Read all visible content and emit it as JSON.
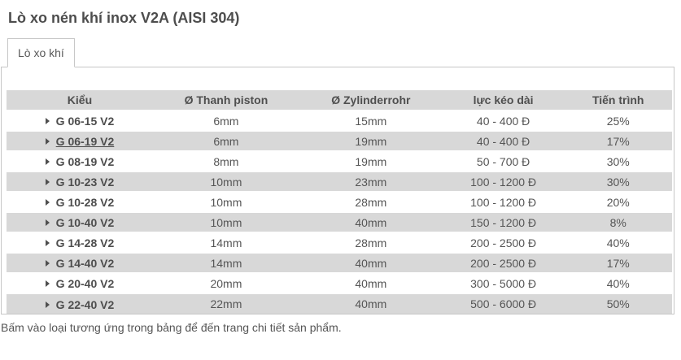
{
  "title": "Lò xo nén khí inox V2A (AISI 304)",
  "tabs": [
    {
      "label": "Lò xo khí",
      "active": true
    }
  ],
  "table": {
    "headers": [
      "Kiểu",
      "Ø Thanh piston",
      "Ø Zylinderrohr",
      "lực kéo dài",
      "Tiến trình"
    ],
    "rows": [
      {
        "model": "G 06-15 V2",
        "piston": "6mm",
        "cylinder": "15mm",
        "force": "40 - 400 Đ",
        "stroke": "25%",
        "underlined": false
      },
      {
        "model": "G 06-19 V2",
        "piston": "6mm",
        "cylinder": "19mm",
        "force": "40 - 400 Đ",
        "stroke": "17%",
        "underlined": true
      },
      {
        "model": "G 08-19 V2",
        "piston": "8mm",
        "cylinder": "19mm",
        "force": "50 - 700 Đ",
        "stroke": "30%",
        "underlined": false
      },
      {
        "model": "G 10-23 V2",
        "piston": "10mm",
        "cylinder": "23mm",
        "force": "100 - 1200 Đ",
        "stroke": "30%",
        "underlined": false
      },
      {
        "model": "G 10-28 V2",
        "piston": "10mm",
        "cylinder": "28mm",
        "force": "100 - 1200 Đ",
        "stroke": "20%",
        "underlined": false
      },
      {
        "model": "G 10-40 V2",
        "piston": "10mm",
        "cylinder": "40mm",
        "force": "150 - 1200 Đ",
        "stroke": "8%",
        "underlined": false
      },
      {
        "model": "G 14-28 V2",
        "piston": "14mm",
        "cylinder": "28mm",
        "force": "200 - 2500 Đ",
        "stroke": "40%",
        "underlined": false
      },
      {
        "model": "G 14-40 V2",
        "piston": "14mm",
        "cylinder": "40mm",
        "force": "200 - 2500 Đ",
        "stroke": "17%",
        "underlined": false
      },
      {
        "model": "G 20-40 V2",
        "piston": "20mm",
        "cylinder": "40mm",
        "force": "300 - 5000 Đ",
        "stroke": "40%",
        "underlined": false
      },
      {
        "model": "G 22-40 V2",
        "piston": "22mm",
        "cylinder": "40mm",
        "force": "500 - 6000 Đ",
        "stroke": "50%",
        "underlined": false
      }
    ]
  },
  "footer": {
    "note": "Bấm vào loại tương ứng trong bảng để đến trang chi tiết sản phẩm."
  },
  "colors": {
    "stripe": "#d8d8d8",
    "border": "#c7c7c7",
    "text": "#555555",
    "heading": "#4d4d4d"
  }
}
